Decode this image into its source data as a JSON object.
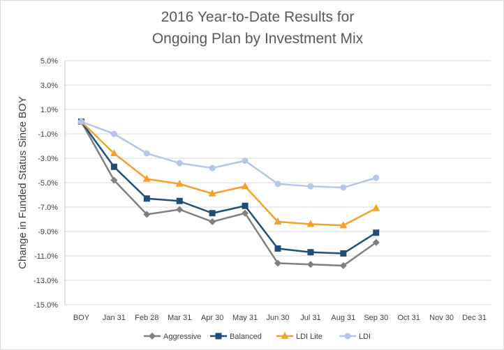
{
  "chart_data": {
    "type": "line",
    "title_lines": [
      "2016 Year-to-Date Results for",
      "Ongoing Plan by Investment Mix"
    ],
    "xlabel": "",
    "ylabel": "Change in Funded Status Since BOY",
    "categories": [
      "BOY",
      "Jan 31",
      "Feb 28",
      "Mar 31",
      "Apr 30",
      "May 31",
      "Jun 30",
      "Jul 31",
      "Aug 31",
      "Sep 30",
      "Oct 31",
      "Nov 30",
      "Dec 31"
    ],
    "ylim": [
      -15.0,
      5.0
    ],
    "yticks": [
      5.0,
      3.0,
      1.0,
      -1.0,
      -3.0,
      -5.0,
      -7.0,
      -9.0,
      -11.0,
      -13.0,
      -15.0
    ],
    "ytick_labels": [
      "5.0%",
      "3.0%",
      "1.0%",
      "-1.0%",
      "-3.0%",
      "-5.0%",
      "-7.0%",
      "-9.0%",
      "-11.0%",
      "-13.0%",
      "-15.0%"
    ],
    "grid": true,
    "legend_position": "bottom",
    "series": [
      {
        "name": "Aggressive",
        "color": "#7f7f7f",
        "marker": "diamond",
        "values": [
          0.0,
          -4.8,
          -7.6,
          -7.2,
          -8.2,
          -7.5,
          -11.6,
          -11.7,
          -11.8,
          -9.9,
          null,
          null,
          null
        ]
      },
      {
        "name": "Balanced",
        "color": "#1f4e79",
        "marker": "square",
        "values": [
          0.0,
          -3.7,
          -6.3,
          -6.5,
          -7.5,
          -6.9,
          -10.4,
          -10.7,
          -10.8,
          -9.1,
          null,
          null,
          null
        ]
      },
      {
        "name": "LDI Lite",
        "color": "#f4a12b",
        "marker": "triangle",
        "values": [
          0.0,
          -2.6,
          -4.7,
          -5.1,
          -5.9,
          -5.3,
          -8.2,
          -8.4,
          -8.5,
          -7.1,
          null,
          null,
          null
        ]
      },
      {
        "name": "LDI",
        "color": "#b4c7e7",
        "marker": "circle",
        "values": [
          0.0,
          -1.0,
          -2.6,
          -3.4,
          -3.8,
          -3.2,
          -5.1,
          -5.3,
          -5.4,
          -4.6,
          null,
          null,
          null
        ]
      }
    ]
  }
}
